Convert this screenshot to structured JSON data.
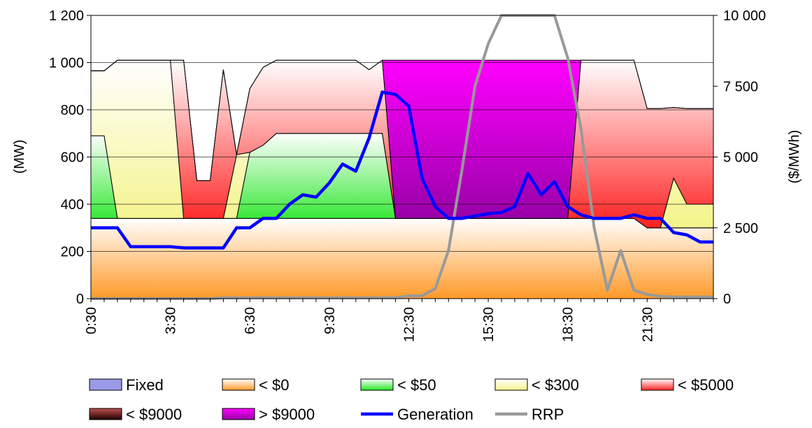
{
  "chart_data": {
    "type": "area",
    "xlabel": "",
    "ylabel": "(MW)",
    "y2label": "($/MWh)",
    "ylim": [
      0,
      1200
    ],
    "y2lim": [
      0,
      10000
    ],
    "y_ticks": [
      "0",
      "200",
      "400",
      "600",
      "800",
      "1 000",
      "1 200"
    ],
    "y2_ticks": [
      "0",
      "2 500",
      "5 000",
      "7 500",
      "10 000"
    ],
    "x_ticks": [
      "0:30",
      "3:30",
      "6:30",
      "9:30",
      "12:30",
      "15:30",
      "18:30",
      "21:30"
    ],
    "x_tick_positions": [
      0,
      6,
      12,
      18,
      24,
      30,
      36,
      42
    ],
    "grid": "horizontal",
    "legend_position": "bottom",
    "x_hours": [
      0.5,
      1,
      1.5,
      2,
      2.5,
      3,
      3.5,
      4,
      4.5,
      5,
      5.5,
      6,
      6.5,
      7,
      7.5,
      8,
      8.5,
      9,
      9.5,
      10,
      10.5,
      11,
      11.5,
      12,
      12.5,
      13,
      13.5,
      14,
      14.5,
      15,
      15.5,
      16,
      16.5,
      17,
      17.5,
      18,
      18.5,
      19,
      19.5,
      20,
      20.5,
      21,
      21.5,
      22,
      22.5,
      23,
      23.5,
      24
    ],
    "bands": [
      {
        "name": "Fixed",
        "color_top": "#9a9ae8",
        "color_bottom": "#9a9ae8",
        "values": [
          0,
          0,
          0,
          0,
          0,
          0,
          0,
          0,
          0,
          0,
          0,
          0,
          0,
          0,
          0,
          0,
          0,
          0,
          0,
          0,
          0,
          0,
          0,
          0,
          0,
          0,
          0,
          0,
          0,
          0,
          0,
          0,
          0,
          0,
          0,
          0,
          0,
          0,
          0,
          0,
          0,
          0,
          0,
          0,
          0,
          0,
          0,
          0
        ]
      },
      {
        "name": "< $0",
        "color_top": "#ffffff",
        "color_bottom": "#ff9a28",
        "values": [
          340,
          340,
          340,
          340,
          340,
          340,
          340,
          340,
          340,
          340,
          340,
          340,
          340,
          340,
          340,
          340,
          340,
          340,
          340,
          340,
          340,
          340,
          340,
          340,
          340,
          340,
          340,
          340,
          340,
          340,
          340,
          340,
          340,
          340,
          340,
          340,
          340,
          340,
          340,
          340,
          340,
          340,
          300,
          300,
          300,
          300,
          300,
          300
        ]
      },
      {
        "name": "< $50",
        "color_top": "#ffffff",
        "color_bottom": "#22e622",
        "values": [
          350,
          350,
          0,
          0,
          0,
          0,
          0,
          0,
          0,
          0,
          0,
          0,
          280,
          310,
          360,
          360,
          360,
          360,
          360,
          360,
          360,
          360,
          360,
          0,
          0,
          0,
          0,
          0,
          0,
          0,
          0,
          0,
          0,
          0,
          0,
          0,
          0,
          0,
          0,
          0,
          0,
          0,
          0,
          0,
          0,
          0,
          0,
          0
        ]
      },
      {
        "name": "< $300",
        "color_top": "#ffffff",
        "color_bottom": "#f4f48a",
        "values": [
          275,
          275,
          670,
          670,
          670,
          670,
          670,
          0,
          0,
          0,
          0,
          270,
          0,
          0,
          0,
          0,
          0,
          0,
          0,
          0,
          0,
          0,
          0,
          0,
          0,
          0,
          0,
          0,
          0,
          0,
          0,
          0,
          0,
          0,
          0,
          0,
          0,
          0,
          0,
          0,
          0,
          0,
          0,
          0,
          210,
          100,
          100,
          100
        ]
      },
      {
        "name": "< $5000",
        "color_top": "#ffffff",
        "color_bottom": "#ff2020",
        "values": [
          0,
          0,
          0,
          0,
          0,
          0,
          0,
          670,
          160,
          160,
          630,
          0,
          270,
          330,
          310,
          310,
          310,
          310,
          310,
          310,
          310,
          270,
          310,
          0,
          0,
          0,
          0,
          0,
          0,
          0,
          0,
          0,
          0,
          0,
          0,
          0,
          0,
          670,
          670,
          670,
          670,
          670,
          505,
          505,
          300,
          405,
          405,
          405
        ]
      },
      {
        "name": "< $9000",
        "color_top": "#c05050",
        "color_bottom": "#200000",
        "values": [
          0,
          0,
          0,
          0,
          0,
          0,
          0,
          0,
          0,
          0,
          0,
          0,
          0,
          0,
          0,
          0,
          0,
          0,
          0,
          0,
          0,
          0,
          0,
          0,
          0,
          0,
          0,
          0,
          0,
          0,
          0,
          0,
          0,
          0,
          0,
          0,
          0,
          0,
          0,
          0,
          0,
          0,
          0,
          0,
          0,
          0,
          0,
          0
        ]
      },
      {
        "name": "> $9000",
        "color_top": "#ff00ff",
        "color_bottom": "#9900a8",
        "values": [
          0,
          0,
          0,
          0,
          0,
          0,
          0,
          0,
          0,
          0,
          0,
          0,
          0,
          0,
          0,
          0,
          0,
          0,
          0,
          0,
          0,
          0,
          0,
          670,
          670,
          670,
          670,
          670,
          670,
          670,
          670,
          670,
          670,
          670,
          670,
          670,
          670,
          0,
          0,
          0,
          0,
          0,
          0,
          0,
          0,
          0,
          0,
          0
        ]
      }
    ],
    "series": [
      {
        "name": "Generation",
        "axis": "left",
        "color": "#0000ff",
        "values": [
          300,
          300,
          300,
          220,
          220,
          220,
          220,
          215,
          215,
          215,
          215,
          300,
          300,
          340,
          340,
          400,
          440,
          430,
          490,
          570,
          540,
          680,
          875,
          865,
          815,
          510,
          390,
          340,
          340,
          350,
          360,
          365,
          390,
          530,
          440,
          495,
          390,
          355,
          340,
          340,
          340,
          355,
          340,
          340,
          280,
          270,
          240,
          240
        ]
      },
      {
        "name": "RRP",
        "axis": "right",
        "color": "#999999",
        "values": [
          0,
          0,
          0,
          0,
          0,
          0,
          0,
          0,
          0,
          0,
          30,
          30,
          30,
          30,
          30,
          30,
          30,
          30,
          30,
          30,
          30,
          30,
          30,
          30,
          100,
          100,
          350,
          1700,
          4500,
          7500,
          9000,
          10000,
          10000,
          10000,
          10000,
          10000,
          8500,
          6000,
          2500,
          300,
          1700,
          300,
          150,
          80,
          60,
          60,
          60,
          60
        ]
      }
    ],
    "legend": [
      {
        "label": "Fixed",
        "kind": "box"
      },
      {
        "label": "< $0",
        "kind": "box"
      },
      {
        "label": "< $50",
        "kind": "box"
      },
      {
        "label": "< $300",
        "kind": "box"
      },
      {
        "label": "< $5000",
        "kind": "box"
      },
      {
        "label": "< $9000",
        "kind": "box"
      },
      {
        "label": "> $9000",
        "kind": "box"
      },
      {
        "label": "Generation",
        "kind": "line"
      },
      {
        "label": "RRP",
        "kind": "line"
      }
    ]
  }
}
